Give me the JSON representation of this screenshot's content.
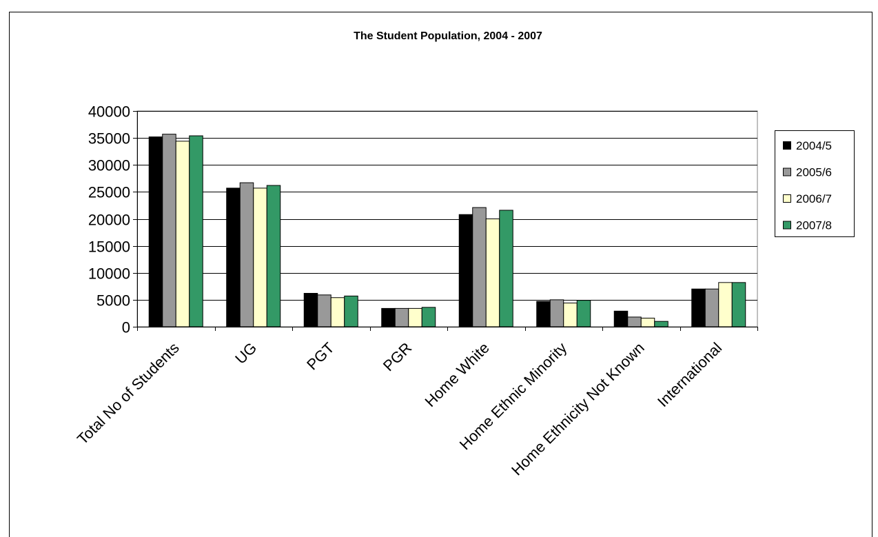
{
  "chart_data": {
    "type": "bar",
    "title": "The Student Population, 2004 - 2007",
    "categories": [
      "Total No of Students",
      "UG",
      "PGT",
      "PGR",
      "Home White",
      "Home Ethnic Minority",
      "Home Ethnicity Not Known",
      "International"
    ],
    "series": [
      {
        "name": "2004/5",
        "color": "#000000",
        "values": [
          35200,
          25700,
          6200,
          3400,
          20800,
          4700,
          2900,
          7000
        ]
      },
      {
        "name": "2005/6",
        "color": "#999999",
        "values": [
          35700,
          26700,
          5900,
          3400,
          22100,
          5000,
          1800,
          7000
        ]
      },
      {
        "name": "2006/7",
        "color": "#FFFFCC",
        "values": [
          34400,
          25700,
          5400,
          3400,
          20000,
          4400,
          1600,
          8200
        ]
      },
      {
        "name": "2007/8",
        "color": "#339966",
        "values": [
          35400,
          26200,
          5700,
          3600,
          21600,
          4900,
          1000,
          8200
        ]
      }
    ],
    "ylim": [
      0,
      40000
    ],
    "yticks": [
      0,
      5000,
      10000,
      15000,
      20000,
      25000,
      30000,
      35000,
      40000
    ],
    "grid": true,
    "legend": "right"
  }
}
